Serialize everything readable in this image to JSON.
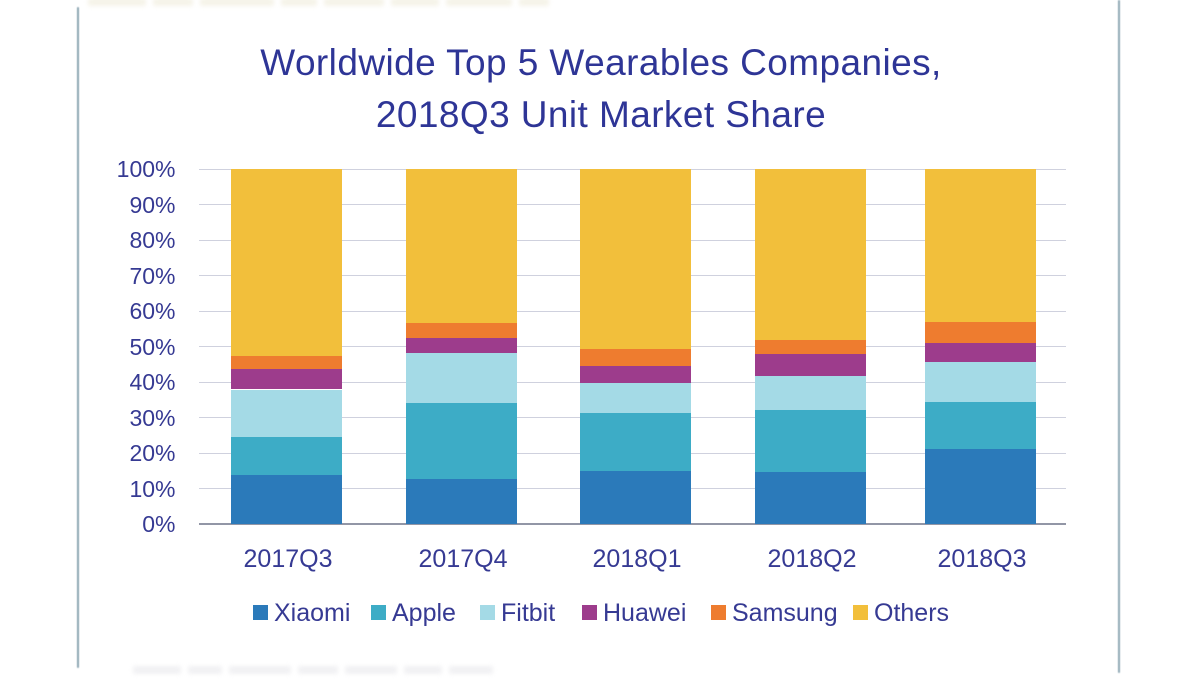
{
  "page": {
    "background": "#ffffff",
    "left_rule_color": "#8da7b3",
    "right_rule_color": "#90a9b5",
    "cropped_text_top": "unreadable cropped article text",
    "cropped_text_bottom": "unreadable cropped article text"
  },
  "chart_data": {
    "type": "bar",
    "stacked": true,
    "units": "percent share",
    "title": "Worldwide Top 5 Wearables Companies, 2018Q3 Unit Market Share",
    "title_line1": "Worldwide Top 5 Wearables Companies,",
    "title_line2": "2018Q3 Unit Market Share",
    "categories": [
      "2017Q3",
      "2017Q4",
      "2018Q1",
      "2018Q2",
      "2018Q3"
    ],
    "series": [
      {
        "name": "Xiaomi",
        "color": "#2b7aba",
        "values": [
          13.9,
          12.8,
          15.0,
          14.8,
          21.2
        ]
      },
      {
        "name": "Apple",
        "color": "#3dacc6",
        "values": [
          10.7,
          21.5,
          16.3,
          17.3,
          13.3
        ]
      },
      {
        "name": "Fitbit",
        "color": "#a4dae6",
        "values": [
          13.4,
          14.1,
          8.4,
          9.8,
          11.3
        ]
      },
      {
        "name": "Huawei",
        "color": "#9d3c8c",
        "values": [
          5.7,
          4.0,
          5.0,
          6.1,
          5.3
        ]
      },
      {
        "name": "Samsung",
        "color": "#ee7c2f",
        "values": [
          3.6,
          4.3,
          4.7,
          4.0,
          6.0
        ]
      },
      {
        "name": "Others",
        "color": "#f2bf3b",
        "values": [
          52.7,
          43.3,
          50.6,
          48.0,
          42.9
        ]
      }
    ],
    "y_axis": {
      "min": 0,
      "max": 100,
      "step": 10,
      "tick_labels": [
        "0%",
        "10%",
        "20%",
        "30%",
        "40%",
        "50%",
        "60%",
        "70%",
        "80%",
        "90%",
        "100%"
      ],
      "grid": true
    },
    "legend_position": "bottom",
    "text_color": "#363a93",
    "title_color": "#2e3596",
    "grid_color": "#cfd1de",
    "axis_line_color": "#9296a6"
  }
}
